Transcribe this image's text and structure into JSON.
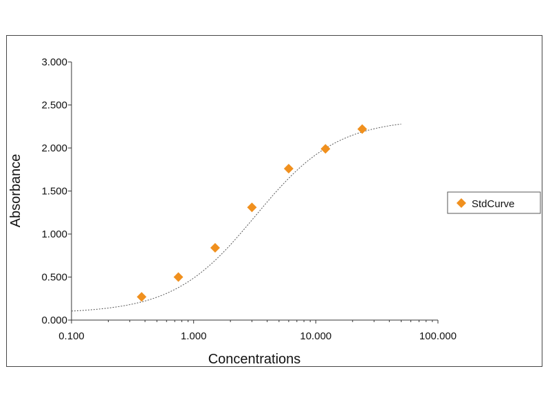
{
  "chart_data": {
    "type": "scatter",
    "xlabel": "Concentrations",
    "ylabel": "Absorbance",
    "x_scale": "log",
    "xlim": [
      0.1,
      100
    ],
    "ylim": [
      0,
      3
    ],
    "x_ticks": [
      {
        "value": 0.1,
        "label": "0.100"
      },
      {
        "value": 1,
        "label": "1.000"
      },
      {
        "value": 10,
        "label": "10.000"
      },
      {
        "value": 100,
        "label": "100.000"
      }
    ],
    "y_ticks": [
      {
        "value": 0,
        "label": "0.000"
      },
      {
        "value": 0.5,
        "label": "0.500"
      },
      {
        "value": 1,
        "label": "1.000"
      },
      {
        "value": 1.5,
        "label": "1.500"
      },
      {
        "value": 2,
        "label": "2.000"
      },
      {
        "value": 2.5,
        "label": "2.500"
      },
      {
        "value": 3,
        "label": "3.000"
      }
    ],
    "grid": false,
    "legend_position": "right",
    "series": [
      {
        "name": "StdCurve",
        "marker": "diamond",
        "color": "#F0901E",
        "points": [
          {
            "x": 0.375,
            "y": 0.27
          },
          {
            "x": 0.75,
            "y": 0.5
          },
          {
            "x": 1.5,
            "y": 0.84
          },
          {
            "x": 3.0,
            "y": 1.31
          },
          {
            "x": 6.0,
            "y": 1.76
          },
          {
            "x": 12.0,
            "y": 1.99
          },
          {
            "x": 24.0,
            "y": 2.22
          }
        ]
      }
    ],
    "fit_curve": {
      "style": "dotted",
      "color": "#555555",
      "x_range": [
        0.1,
        50
      ]
    }
  }
}
